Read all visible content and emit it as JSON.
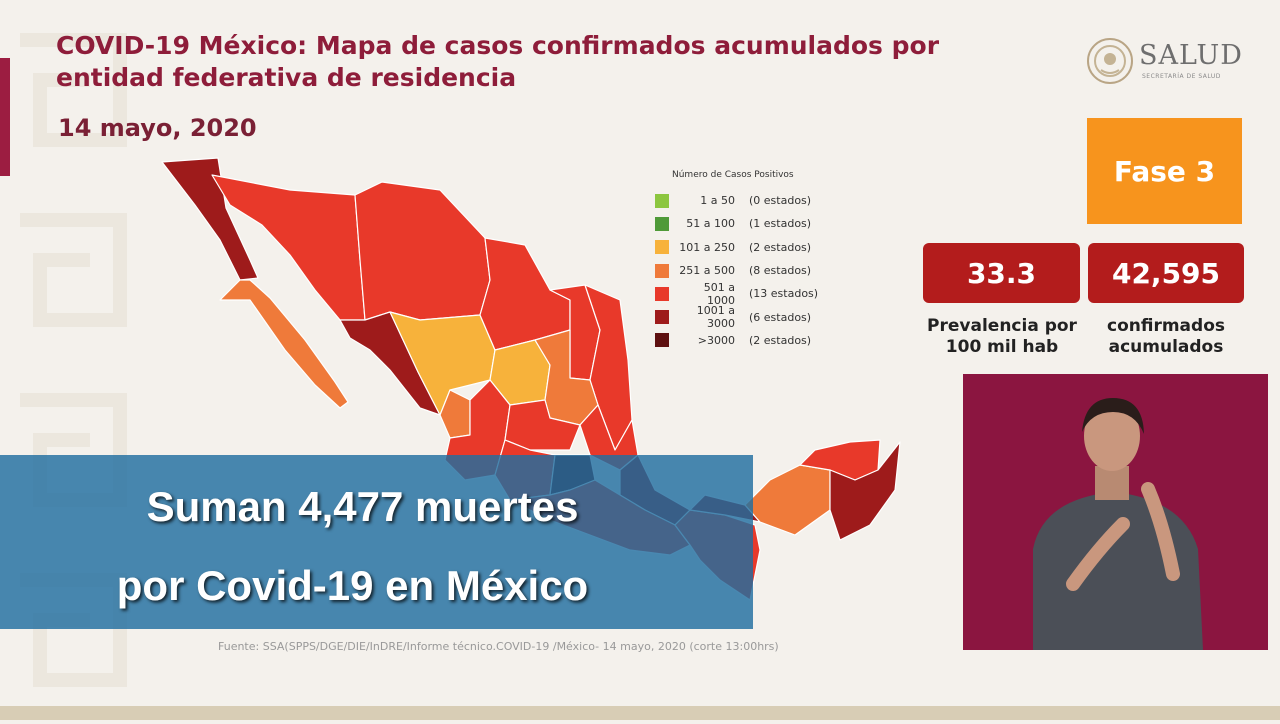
{
  "title": "COVID-19 México: Mapa de casos confirmados acumulados por entidad federativa de residencia",
  "date": "14 mayo, 2020",
  "logo": {
    "name": "SALUD",
    "subtitle": "SECRETARÍA DE SALUD"
  },
  "phase": "Fase 3",
  "stats": {
    "prevalence_value": "33.3",
    "prevalence_label": "Prevalencia por 100 mil hab",
    "confirmed_value": "42,595",
    "confirmed_label": "confirmados acumulados"
  },
  "legend": {
    "title": "Número de Casos Positivos",
    "items": [
      {
        "range": "1 a 50",
        "count": "(0 estados)",
        "color": "#8cc63f"
      },
      {
        "range": "51 a 100",
        "count": "(1 estados)",
        "color": "#4f9a38"
      },
      {
        "range": "101 a 250",
        "count": "(2 estados)",
        "color": "#f7b23b"
      },
      {
        "range": "251 a 500",
        "count": "(8 estados)",
        "color": "#ef7a3a"
      },
      {
        "range": "501 a 1000",
        "count": "(13 estados)",
        "color": "#e8392a"
      },
      {
        "range": "1001 a 3000",
        "count": "(6 estados)",
        "color": "#9e1b1b"
      },
      {
        "range": ">3000",
        "count": "(2 estados)",
        "color": "#5e1010"
      }
    ]
  },
  "source": "Fuente: SSA(SPPS/DGE/DIE/InDRE/Informe técnico.COVID-19 /México- 14 mayo, 2020 (corte 13:00hrs)",
  "caption": {
    "line1": "Suman 4,477 muertes",
    "line2": "por Covid-19 en México"
  },
  "colors": {
    "accent": "#8e1d3a",
    "phase": "#f7941d",
    "stat_box": "#b31c1c",
    "caption_bg": "#216ea0"
  }
}
